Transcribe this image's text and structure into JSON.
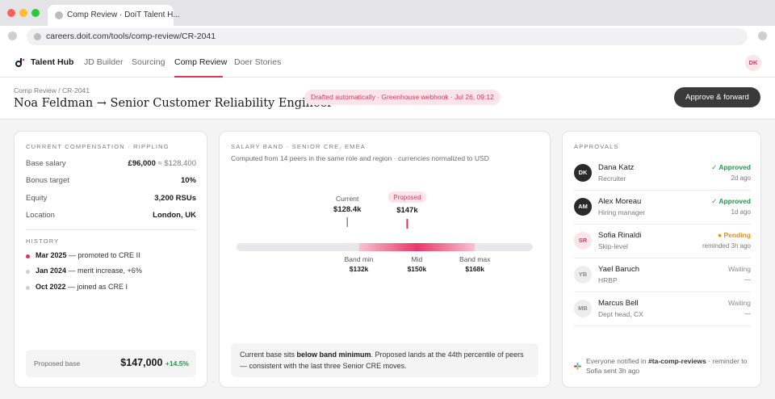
{
  "browser": {
    "tab_title": "Comp Review · DoiT Talent H...",
    "url": "careers.doit.com/tools/comp-review/CR-2041"
  },
  "nav": {
    "brand": "Talent Hub",
    "links": [
      "JD Builder",
      "Sourcing",
      "Comp Review",
      "Doer Stories"
    ],
    "active": "Comp Review",
    "user_initials": "DK"
  },
  "header": {
    "breadcrumb": "Comp Review / CR-2041",
    "title": "Noa Feldman → Senior Customer Reliability Engineer",
    "draft_badge": "Drafted automatically · Greenhouse webhook · Jul 26, 09:12",
    "approve_label": "Approve & forward"
  },
  "current_comp": {
    "label": "CURRENT COMPENSATION · RIPPLING",
    "base_label": "Base salary",
    "base_value": "£96,000",
    "base_converted": "≈ $128,400",
    "bonus_label": "Bonus target",
    "bonus_value": "10%",
    "equity_label": "Equity",
    "equity_value": "3,200 RSUs",
    "location_label": "Location",
    "location_value": "London, UK",
    "history_label": "HISTORY",
    "history": [
      {
        "date": "Mar 2025",
        "text": " — promoted to CRE II"
      },
      {
        "date": "Jan 2024",
        "text": " — merit increase, +6%"
      },
      {
        "date": "Oct 2022",
        "text": " — joined as CRE I"
      }
    ],
    "proposed_label": "Proposed base",
    "proposed_value": "$147,000",
    "proposed_delta": "+14.5%"
  },
  "salary_band": {
    "label": "SALARY BAND · SENIOR CRE, EMEA",
    "subtitle": "Computed from 14 peers in the same role and region · currencies normalized to USD",
    "current_label": "Current",
    "current_display": "$128.4k",
    "proposed_label": "Proposed",
    "proposed_display": "$147k",
    "min_label": "Band min",
    "min_display": "$132k",
    "mid_label": "Mid",
    "mid_display": "$150k",
    "max_label": "Band max",
    "max_display": "$168k",
    "scale": {
      "start": 94,
      "end": 186
    },
    "current": 128.4,
    "proposed": 147,
    "min": 132,
    "mid": 150,
    "max": 168,
    "insight_pre": "Current base sits ",
    "insight_bold": "below band minimum",
    "insight_post": ". Proposed lands at the 44th percentile of peers — consistent with the last three Senior CRE moves."
  },
  "approvals": {
    "label": "APPROVALS",
    "items": [
      {
        "initials": "DK",
        "name": "Dana Katz",
        "role": "Recruiter",
        "status": "✓ Approved",
        "time": "2d ago"
      },
      {
        "initials": "AM",
        "name": "Alex Moreau",
        "role": "Hiring manager",
        "status": "✓ Approved",
        "time": "1d ago"
      },
      {
        "initials": "SR",
        "name": "Sofia Rinaldi",
        "role": "Skip-level",
        "status": "● Pending",
        "time": "reminded 3h ago"
      },
      {
        "initials": "YB",
        "name": "Yael Baruch",
        "role": "HRBP",
        "status": "Waiting",
        "time": "—"
      },
      {
        "initials": "MB",
        "name": "Marcus Bell",
        "role": "Dept head, CX",
        "status": "Waiting",
        "time": "—"
      }
    ],
    "notify_pre": "Everyone notified in ",
    "notify_channel": "#ta-comp-reviews",
    "notify_post": " · reminder to Sofia sent 3h ago"
  }
}
